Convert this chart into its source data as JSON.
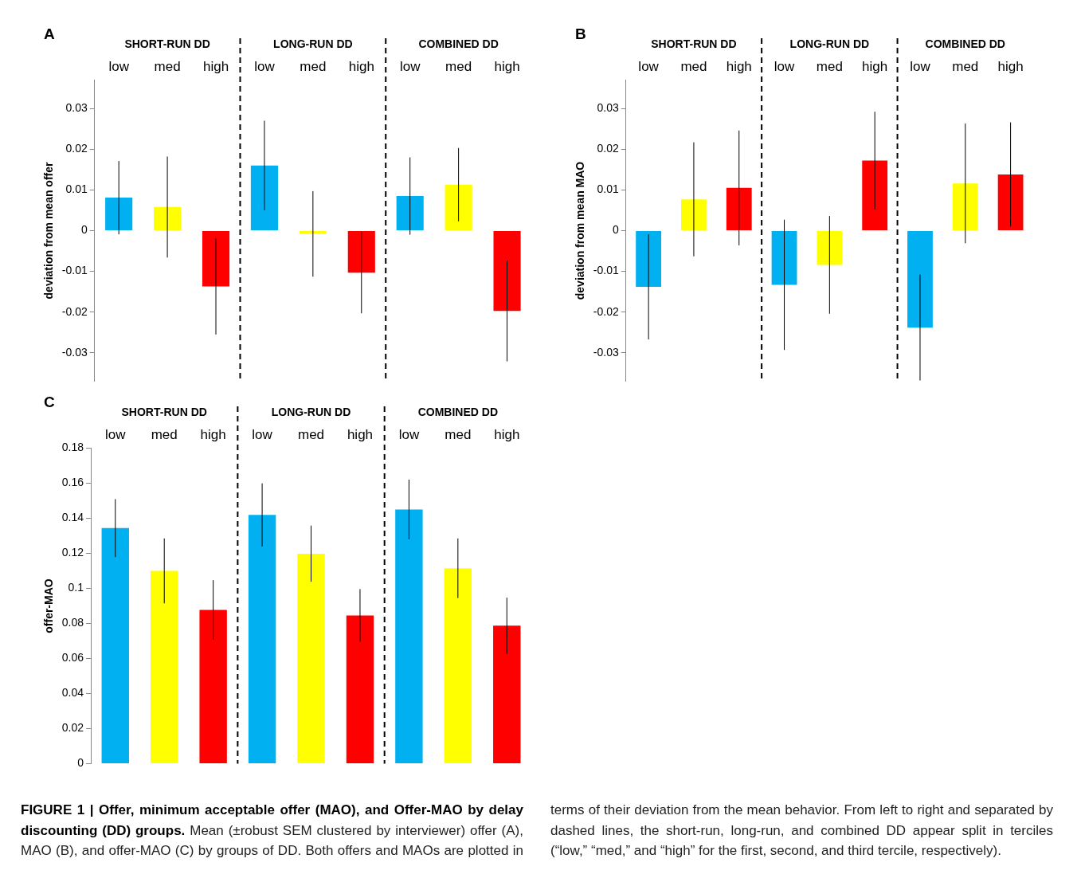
{
  "chart_data": [
    {
      "type": "bar",
      "title": "A",
      "ylabel": "deviation from mean offer",
      "annotations": [
        "SHORT-RUN DD",
        "LONG-RUN DD",
        "COMBINED DD"
      ],
      "categories": [
        "low",
        "med",
        "high",
        "low",
        "med",
        "high",
        "low",
        "med",
        "high"
      ],
      "values": [
        0.0081,
        0.0058,
        -0.0137,
        0.016,
        -0.0008,
        -0.0103,
        0.0085,
        0.0113,
        -0.0197
      ],
      "errors": [
        0.009,
        0.0124,
        0.0118,
        0.011,
        0.0105,
        0.01,
        0.0095,
        0.009,
        0.0124
      ],
      "colors": [
        "#00b0f0",
        "#ffff00",
        "#ff0000",
        "#00b0f0",
        "#ffff00",
        "#ff0000",
        "#00b0f0",
        "#ffff00",
        "#ff0000"
      ],
      "ylim": [
        -0.037,
        0.037
      ],
      "yticks": [
        -0.03,
        -0.02,
        -0.01,
        0,
        0.01,
        0.02,
        0.03
      ],
      "grid": false,
      "legend": false
    },
    {
      "type": "bar",
      "title": "B",
      "ylabel": "deviation from mean MAO",
      "annotations": [
        "SHORT-RUN DD",
        "LONG-RUN DD",
        "COMBINED DD"
      ],
      "categories": [
        "low",
        "med",
        "high",
        "low",
        "med",
        "high",
        "low",
        "med",
        "high"
      ],
      "values": [
        -0.0138,
        0.0077,
        0.0105,
        -0.0133,
        -0.0084,
        0.0172,
        -0.0238,
        0.0116,
        0.0138
      ],
      "errors": [
        0.0129,
        0.014,
        0.0141,
        0.016,
        0.012,
        0.012,
        0.013,
        0.0147,
        0.0128
      ],
      "colors": [
        "#00b0f0",
        "#ffff00",
        "#ff0000",
        "#00b0f0",
        "#ffff00",
        "#ff0000",
        "#00b0f0",
        "#ffff00",
        "#ff0000"
      ],
      "ylim": [
        -0.037,
        0.037
      ],
      "yticks": [
        -0.03,
        -0.02,
        -0.01,
        0,
        0.01,
        0.02,
        0.03
      ],
      "grid": false,
      "legend": false
    },
    {
      "type": "bar",
      "title": "C",
      "ylabel": "offer-MAO",
      "annotations": [
        "SHORT-RUN DD",
        "LONG-RUN DD",
        "COMBINED DD"
      ],
      "categories": [
        "low",
        "med",
        "high",
        "low",
        "med",
        "high",
        "low",
        "med",
        "high"
      ],
      "values": [
        0.1344,
        0.11,
        0.0877,
        0.1419,
        0.1198,
        0.0846,
        0.145,
        0.1115,
        0.0787
      ],
      "errors": [
        0.0165,
        0.0185,
        0.017,
        0.018,
        0.016,
        0.015,
        0.017,
        0.017,
        0.016
      ],
      "colors": [
        "#00b0f0",
        "#ffff00",
        "#ff0000",
        "#00b0f0",
        "#ffff00",
        "#ff0000",
        "#00b0f0",
        "#ffff00",
        "#ff0000"
      ],
      "ylim": [
        0,
        0.18
      ],
      "yticks": [
        0,
        0.02,
        0.04,
        0.06,
        0.08,
        0.1,
        0.12,
        0.14,
        0.16,
        0.18
      ],
      "grid": false,
      "legend": false
    },
    {
      "type": "other",
      "title": "FIGURE 1 | Offer, minimum acceptable offer (MAO), and Offer-MAO by delay discounting (DD) groups.",
      "annotations": [
        "Mean (±robust SEM clustered by interviewer) offer (A), MAO (B), and offer-MAO (C) by groups of DD. Both offers and MAOs are plotted in terms of their deviation from the mean behavior. From left to right and separated by dashed lines, the short-run, long-run, and combined DD appear split in terciles (“low,” “med,” and “high” for the first, second, and third tercile, respectively)."
      ]
    }
  ]
}
